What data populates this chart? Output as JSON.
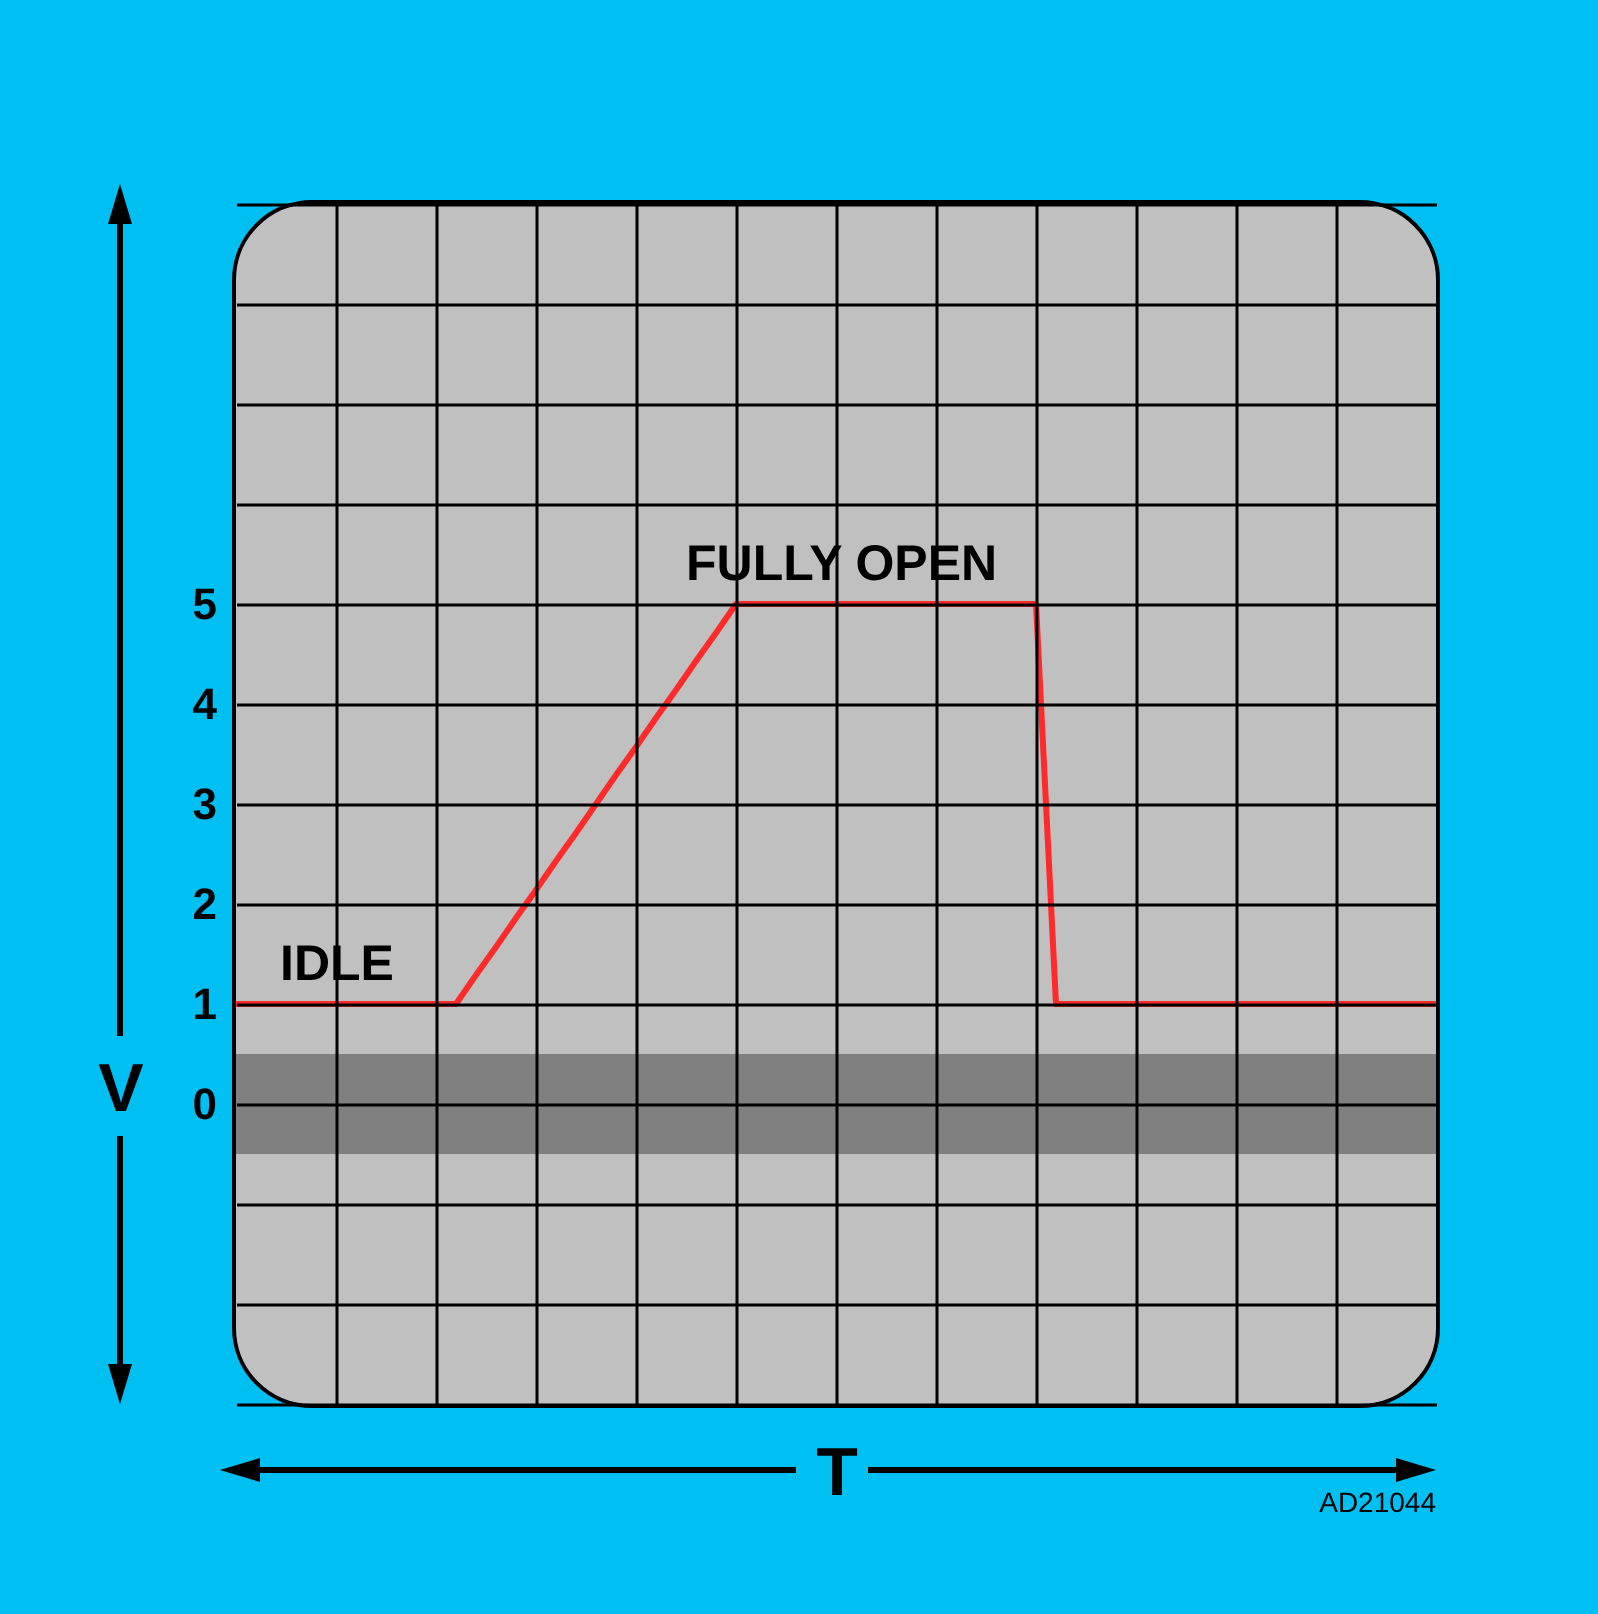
{
  "chart_data": {
    "type": "line",
    "xlabel": "T",
    "ylabel": "V",
    "categories": [
      null,
      null,
      null,
      null,
      null,
      null,
      null,
      null,
      null,
      null,
      null,
      null,
      null,
      null,
      null,
      null,
      null,
      null,
      null,
      null,
      null,
      null,
      null,
      null,
      null,
      null,
      null,
      null,
      null,
      null,
      null,
      null,
      null,
      null,
      null,
      null,
      null,
      null,
      null,
      null,
      null,
      null,
      null,
      null,
      null,
      null,
      null,
      null,
      null,
      null,
      null,
      null,
      null,
      null,
      null,
      null,
      null,
      null,
      null,
      null,
      null
    ],
    "series": [
      {
        "color": "#ff2a2a",
        "values": [
          1,
          1,
          1,
          1,
          1,
          1,
          1,
          1,
          1,
          1,
          1,
          1,
          1.29,
          1.57,
          1.86,
          2.14,
          2.43,
          2.71,
          3,
          3.29,
          3.57,
          3.86,
          4.14,
          4.43,
          4.71,
          5,
          5,
          5,
          5,
          5,
          5,
          5,
          5,
          5,
          5,
          5,
          5,
          5,
          5,
          5,
          5,
          1,
          1,
          1,
          1,
          1,
          1,
          1,
          1,
          1,
          1,
          1,
          1,
          1,
          1,
          1,
          1,
          1,
          1,
          1,
          1
        ]
      }
    ],
    "ylim": [
      -3,
      9
    ],
    "yticks": [
      {
        "value": -3,
        "label": null
      },
      {
        "value": -2,
        "label": null
      },
      {
        "value": -1,
        "label": null
      },
      0,
      1,
      2,
      3,
      4,
      5,
      {
        "value": 6,
        "label": null
      },
      {
        "value": 7,
        "label": null
      },
      {
        "value": 8,
        "label": null
      },
      {
        "value": 9,
        "label": null
      }
    ],
    "tick_labels": "y",
    "grid": true,
    "line_style": "solid",
    "marker": "none",
    "bands": [
      {
        "axis": "y",
        "from": -0.5,
        "to": 0.5,
        "color": "#808080"
      }
    ],
    "annotations": [
      "IDLE",
      "FULLY OPEN",
      "AD21044"
    ]
  }
}
